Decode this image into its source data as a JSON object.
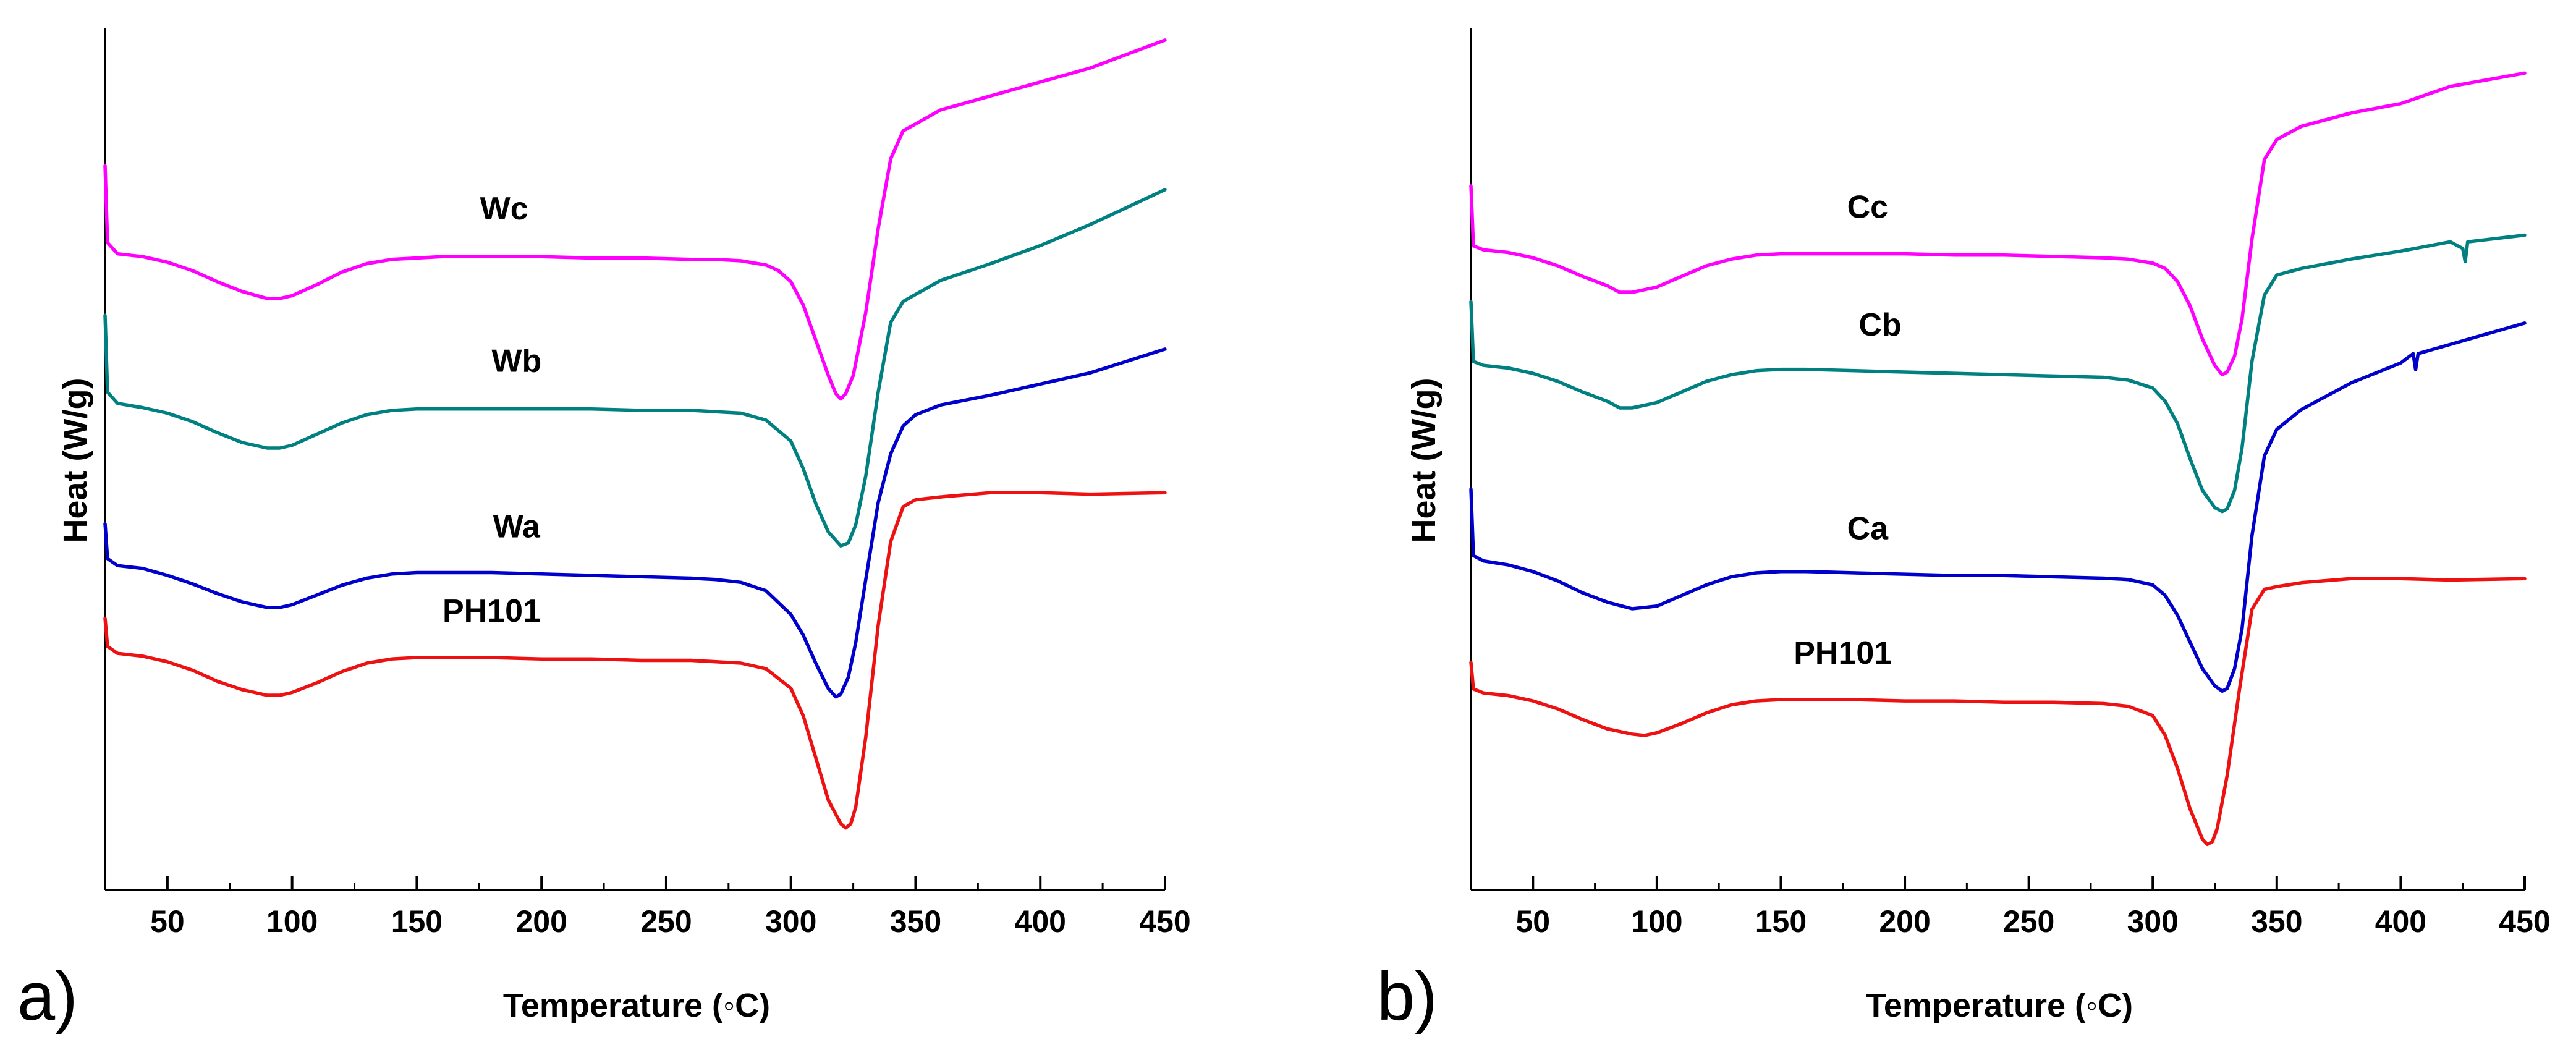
{
  "chart_data": [
    {
      "type": "line",
      "panel_label": "a)",
      "xlabel": "Temperature (◦C)",
      "ylabel": "Heat (W/g)",
      "xlim": [
        25,
        450
      ],
      "xticks": [
        50,
        100,
        150,
        200,
        250,
        300,
        350,
        400,
        450
      ],
      "grid": false,
      "legend": "none (inline labels above curves)",
      "series": [
        {
          "name": "Wc",
          "color": "#ff00ff",
          "x": [
            25,
            26,
            30,
            40,
            50,
            60,
            70,
            80,
            90,
            95,
            100,
            110,
            120,
            130,
            140,
            150,
            160,
            180,
            200,
            220,
            240,
            260,
            270,
            280,
            290,
            295,
            300,
            305,
            310,
            315,
            318,
            320,
            322,
            325,
            330,
            335,
            340,
            345,
            350,
            360,
            380,
            400,
            420,
            450
          ],
          "y": [
            0.95,
            0.4,
            0.32,
            0.3,
            0.26,
            0.2,
            0.12,
            0.05,
            0.0,
            0.0,
            0.02,
            0.1,
            0.19,
            0.25,
            0.28,
            0.29,
            0.3,
            0.3,
            0.3,
            0.29,
            0.29,
            0.28,
            0.28,
            0.27,
            0.24,
            0.2,
            0.12,
            -0.05,
            -0.3,
            -0.55,
            -0.68,
            -0.72,
            -0.68,
            -0.55,
            -0.1,
            0.5,
            1.0,
            1.2,
            1.25,
            1.35,
            1.45,
            1.55,
            1.65,
            1.85
          ]
        },
        {
          "name": "Wb",
          "color": "#008080",
          "x": [
            25,
            26,
            30,
            40,
            50,
            60,
            70,
            80,
            90,
            95,
            100,
            110,
            120,
            130,
            140,
            150,
            160,
            180,
            200,
            220,
            240,
            260,
            270,
            280,
            290,
            300,
            305,
            310,
            315,
            320,
            323,
            326,
            330,
            335,
            340,
            345,
            350,
            360,
            380,
            400,
            420,
            450
          ],
          "y": [
            0.95,
            0.4,
            0.32,
            0.29,
            0.25,
            0.19,
            0.11,
            0.04,
            0.0,
            0.0,
            0.02,
            0.1,
            0.18,
            0.24,
            0.27,
            0.28,
            0.28,
            0.28,
            0.28,
            0.28,
            0.27,
            0.27,
            0.26,
            0.25,
            0.2,
            0.05,
            -0.15,
            -0.4,
            -0.6,
            -0.7,
            -0.68,
            -0.55,
            -0.2,
            0.4,
            0.9,
            1.05,
            1.1,
            1.2,
            1.32,
            1.45,
            1.6,
            1.85
          ]
        },
        {
          "name": "Wa",
          "color": "#0000cc",
          "x": [
            25,
            26,
            30,
            40,
            50,
            60,
            70,
            80,
            90,
            95,
            100,
            110,
            120,
            130,
            140,
            150,
            160,
            180,
            200,
            220,
            240,
            260,
            270,
            280,
            290,
            300,
            305,
            310,
            315,
            318,
            320,
            323,
            326,
            330,
            335,
            340,
            345,
            350,
            360,
            380,
            400,
            420,
            450
          ],
          "y": [
            0.6,
            0.35,
            0.3,
            0.28,
            0.23,
            0.17,
            0.1,
            0.04,
            0.0,
            0.0,
            0.02,
            0.09,
            0.16,
            0.21,
            0.24,
            0.25,
            0.25,
            0.25,
            0.24,
            0.23,
            0.22,
            0.21,
            0.2,
            0.18,
            0.12,
            -0.05,
            -0.2,
            -0.4,
            -0.58,
            -0.64,
            -0.62,
            -0.5,
            -0.25,
            0.2,
            0.75,
            1.1,
            1.3,
            1.38,
            1.45,
            1.52,
            1.6,
            1.68,
            1.85
          ]
        },
        {
          "name": "PH101",
          "color": "#ee1111",
          "x": [
            25,
            26,
            30,
            40,
            50,
            60,
            70,
            80,
            90,
            95,
            100,
            110,
            120,
            130,
            140,
            150,
            160,
            180,
            200,
            220,
            240,
            260,
            270,
            280,
            290,
            300,
            305,
            310,
            315,
            320,
            322,
            324,
            326,
            330,
            335,
            340,
            345,
            350,
            360,
            380,
            400,
            420,
            450
          ],
          "y": [
            0.55,
            0.35,
            0.3,
            0.28,
            0.24,
            0.18,
            0.1,
            0.04,
            0.0,
            0.0,
            0.02,
            0.09,
            0.17,
            0.23,
            0.26,
            0.27,
            0.27,
            0.27,
            0.26,
            0.26,
            0.25,
            0.25,
            0.24,
            0.23,
            0.19,
            0.05,
            -0.15,
            -0.45,
            -0.75,
            -0.92,
            -0.95,
            -0.92,
            -0.8,
            -0.3,
            0.5,
            1.1,
            1.35,
            1.4,
            1.42,
            1.45,
            1.45,
            1.44,
            1.45
          ]
        }
      ],
      "annotations": [
        {
          "text": "Wc",
          "x": 185,
          "curve": "Wc"
        },
        {
          "text": "Wb",
          "x": 190,
          "curve": "Wb"
        },
        {
          "text": "Wa",
          "x": 190,
          "curve": "Wa"
        },
        {
          "text": "PH101",
          "x": 180,
          "curve": "PH101"
        }
      ]
    },
    {
      "type": "line",
      "panel_label": "b)",
      "xlabel": "Temperature (◦C)",
      "ylabel": "Heat (W/g)",
      "xlim": [
        25,
        450
      ],
      "xticks": [
        50,
        100,
        150,
        200,
        250,
        300,
        350,
        400,
        450
      ],
      "grid": false,
      "legend": "none (inline labels above curves)",
      "series": [
        {
          "name": "Cc",
          "color": "#ff00ff",
          "x": [
            25,
            26,
            30,
            40,
            50,
            60,
            70,
            80,
            85,
            90,
            100,
            110,
            120,
            130,
            140,
            150,
            160,
            180,
            200,
            220,
            240,
            260,
            280,
            290,
            300,
            305,
            310,
            315,
            320,
            325,
            328,
            330,
            333,
            336,
            340,
            345,
            350,
            360,
            380,
            400,
            420,
            450
          ],
          "y": [
            0.8,
            0.35,
            0.32,
            0.3,
            0.26,
            0.2,
            0.12,
            0.05,
            0.0,
            0.0,
            0.04,
            0.12,
            0.2,
            0.25,
            0.28,
            0.29,
            0.29,
            0.29,
            0.29,
            0.28,
            0.28,
            0.27,
            0.26,
            0.25,
            0.22,
            0.18,
            0.08,
            -0.1,
            -0.35,
            -0.55,
            -0.62,
            -0.6,
            -0.48,
            -0.2,
            0.4,
            1.0,
            1.15,
            1.25,
            1.35,
            1.42,
            1.55,
            1.65
          ]
        },
        {
          "name": "Cb",
          "color": "#008080",
          "x": [
            25,
            26,
            30,
            40,
            50,
            60,
            70,
            80,
            85,
            90,
            100,
            110,
            120,
            130,
            140,
            150,
            160,
            180,
            200,
            220,
            240,
            260,
            280,
            290,
            300,
            305,
            310,
            315,
            320,
            325,
            328,
            330,
            333,
            336,
            340,
            345,
            350,
            360,
            380,
            400,
            420,
            425,
            426,
            427,
            450
          ],
          "y": [
            0.8,
            0.35,
            0.32,
            0.3,
            0.26,
            0.2,
            0.12,
            0.05,
            0.0,
            0.0,
            0.04,
            0.12,
            0.2,
            0.25,
            0.28,
            0.29,
            0.29,
            0.28,
            0.27,
            0.26,
            0.25,
            0.24,
            0.23,
            0.21,
            0.15,
            0.05,
            -0.12,
            -0.38,
            -0.62,
            -0.75,
            -0.78,
            -0.76,
            -0.62,
            -0.3,
            0.35,
            0.85,
            1.0,
            1.05,
            1.12,
            1.18,
            1.25,
            1.2,
            1.1,
            1.25,
            1.3
          ]
        },
        {
          "name": "Ca",
          "color": "#0000cc",
          "x": [
            25,
            26,
            30,
            40,
            50,
            60,
            70,
            80,
            90,
            100,
            110,
            120,
            130,
            140,
            150,
            160,
            180,
            200,
            220,
            240,
            260,
            280,
            290,
            300,
            305,
            310,
            315,
            320,
            325,
            328,
            330,
            333,
            336,
            340,
            345,
            350,
            360,
            380,
            400,
            405,
            406,
            407,
            450
          ],
          "y": [
            0.9,
            0.4,
            0.36,
            0.33,
            0.28,
            0.21,
            0.12,
            0.05,
            0.0,
            0.02,
            0.1,
            0.18,
            0.24,
            0.27,
            0.28,
            0.28,
            0.27,
            0.26,
            0.25,
            0.25,
            0.24,
            0.23,
            0.22,
            0.18,
            0.1,
            -0.05,
            -0.25,
            -0.45,
            -0.58,
            -0.62,
            -0.6,
            -0.45,
            -0.15,
            0.55,
            1.15,
            1.35,
            1.5,
            1.7,
            1.85,
            1.92,
            1.8,
            1.92,
            2.15
          ]
        },
        {
          "name": "PH101",
          "color": "#ee1111",
          "x": [
            25,
            26,
            30,
            40,
            50,
            60,
            70,
            80,
            90,
            95,
            100,
            110,
            120,
            130,
            140,
            150,
            160,
            180,
            200,
            220,
            240,
            260,
            280,
            290,
            300,
            305,
            310,
            315,
            320,
            322,
            324,
            326,
            330,
            335,
            340,
            345,
            350,
            360,
            380,
            400,
            420,
            450
          ],
          "y": [
            0.55,
            0.35,
            0.32,
            0.3,
            0.26,
            0.2,
            0.12,
            0.05,
            0.01,
            0.0,
            0.02,
            0.09,
            0.17,
            0.23,
            0.26,
            0.27,
            0.27,
            0.27,
            0.26,
            0.26,
            0.25,
            0.25,
            0.24,
            0.22,
            0.15,
            0.0,
            -0.25,
            -0.55,
            -0.78,
            -0.82,
            -0.8,
            -0.7,
            -0.3,
            0.35,
            0.95,
            1.1,
            1.12,
            1.15,
            1.18,
            1.18,
            1.17,
            1.18
          ]
        }
      ],
      "annotations": [
        {
          "text": "Cc",
          "x": 185,
          "curve": "Cc"
        },
        {
          "text": "Cb",
          "x": 190,
          "curve": "Cb"
        },
        {
          "text": "Ca",
          "x": 185,
          "curve": "Ca"
        },
        {
          "text": "PH101",
          "x": 175,
          "curve": "PH101"
        }
      ]
    }
  ]
}
